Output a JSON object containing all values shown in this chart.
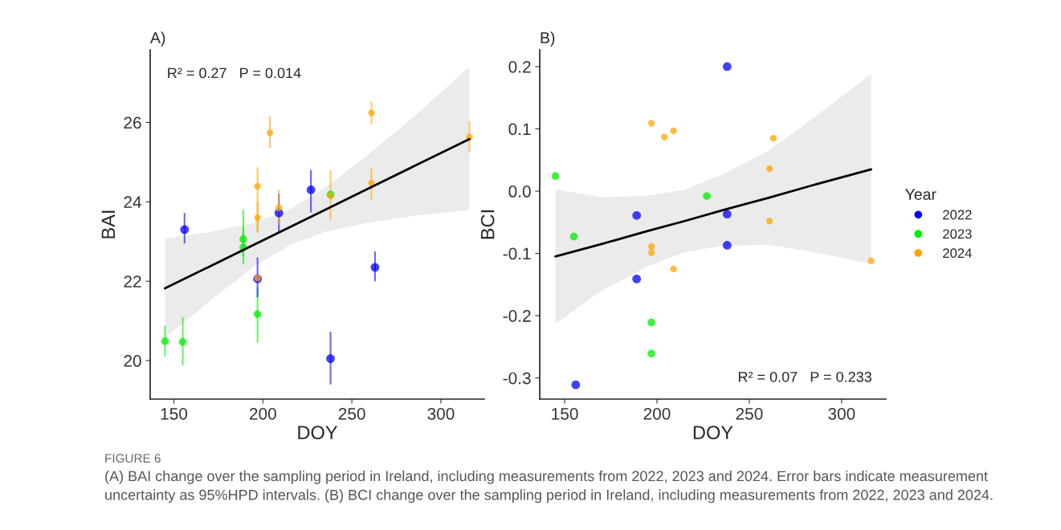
{
  "chart_data": [
    {
      "type": "scatter",
      "title": "A)",
      "xlabel": "DOY",
      "ylabel": "BAI",
      "xlim": [
        136.7,
        324.4
      ],
      "ylim": [
        19.03,
        27.83
      ],
      "xticks": [
        150,
        200,
        250,
        300
      ],
      "yticks": [
        20,
        22,
        24,
        26
      ],
      "grid": false,
      "legend": false,
      "marker": "circle",
      "annotations": [
        "R² = 0.27   P = 0.014",
        "FIGURE 6",
        "(A) BAI change over the sampling period in Ireland, including measurements from 2022, 2023 and 2024. Error bars indicate measurement uncertainty as 95%HPD intervals. (B) BCI change over the sampling period in Ireland, including measurements from 2022, 2023 and 2024."
      ],
      "series": [
        {
          "type": "line",
          "color": "#000000",
          "line_style": "solid",
          "marker": "none",
          "x": [
            145,
            170,
            195,
            215,
            235,
            260,
            285,
            316
          ],
          "values": [
            21.82,
            22.37,
            22.92,
            23.36,
            23.8,
            24.35,
            24.9,
            25.58
          ],
          "lower": [
            20.57,
            21.5,
            22.37,
            22.91,
            23.25,
            23.48,
            23.65,
            23.8
          ],
          "upper": [
            23.07,
            23.24,
            23.47,
            23.81,
            24.35,
            25.22,
            26.15,
            27.4
          ]
        },
        {
          "color": "#0000ff",
          "x": [
            156,
            197,
            209,
            227,
            238,
            263
          ],
          "values": [
            23.3,
            22.06,
            23.72,
            24.3,
            20.05,
            22.35
          ],
          "errors": [
            [
              22.95,
              23.72
            ],
            [
              21.6,
              22.6
            ],
            [
              23.25,
              24.2
            ],
            [
              23.73,
              24.8
            ],
            [
              19.4,
              20.73
            ],
            [
              22.0,
              22.75
            ]
          ]
        },
        {
          "color": "#00ee00",
          "x": [
            145,
            155,
            189,
            189,
            197,
            238
          ],
          "values": [
            20.49,
            20.47,
            23.06,
            22.85,
            21.17,
            24.18
          ],
          "errors": [
            [
              20.1,
              20.88
            ],
            [
              19.88,
              21.1
            ],
            [
              22.62,
              23.8
            ],
            [
              22.43,
              23.35
            ],
            [
              20.45,
              21.85
            ],
            null
          ]
        },
        {
          "color": "#ffa500",
          "x": [
            197,
            197,
            197,
            204,
            209,
            238,
            261,
            261,
            316
          ],
          "values": [
            24.39,
            23.6,
            22.08,
            25.74,
            23.85,
            24.15,
            26.24,
            24.47,
            25.63
          ],
          "errors": [
            [
              23.25,
              24.87
            ],
            [
              23.22,
              24.0
            ],
            null,
            [
              25.35,
              26.16
            ],
            [
              23.43,
              24.3
            ],
            [
              23.55,
              24.8
            ],
            [
              25.95,
              26.52
            ],
            [
              24.05,
              24.87
            ],
            [
              25.24,
              26.03
            ]
          ]
        }
      ]
    },
    {
      "type": "scatter",
      "title": "B)",
      "xlabel": "DOY",
      "ylabel": "BCI",
      "legend_title": "Year",
      "xlim": [
        136.5,
        324
      ],
      "ylim": [
        -0.334,
        0.227
      ],
      "xticks": [
        150,
        200,
        250,
        300
      ],
      "yticks": [
        -0.3,
        -0.2,
        -0.1,
        {
          "value": 0,
          "label": "0.0"
        },
        0.1,
        0.2
      ],
      "grid": false,
      "legend": "right",
      "marker": "circle",
      "annotations": [
        "R² = 0.07   P = 0.233"
      ],
      "series": [
        {
          "type": "line",
          "color": "#000000",
          "line_style": "solid",
          "marker": "none",
          "x": [
            145,
            170,
            195,
            215,
            235,
            260,
            285,
            316
          ],
          "values": [
            -0.105,
            -0.085,
            -0.064,
            -0.048,
            -0.031,
            -0.011,
            0.01,
            0.035
          ],
          "lower": [
            -0.213,
            -0.16,
            -0.121,
            -0.098,
            -0.088,
            -0.086,
            -0.098,
            -0.117
          ],
          "upper": [
            0.003,
            -0.01,
            -0.007,
            0.002,
            0.026,
            0.064,
            0.118,
            0.188
          ]
        },
        {
          "name": "2022",
          "color": "#0000ff",
          "x": [
            238,
            189,
            238,
            238,
            189,
            156
          ],
          "values": [
            0.2,
            -0.039,
            -0.037,
            -0.087,
            -0.141,
            -0.311
          ]
        },
        {
          "name": "2023",
          "color": "#00ee00",
          "x": [
            145,
            227,
            155,
            197,
            197
          ],
          "values": [
            0.024,
            -0.008,
            -0.073,
            -0.211,
            -0.261
          ]
        },
        {
          "name": "2024",
          "color": "#ffa500",
          "x": [
            197,
            204,
            209,
            263,
            261,
            261,
            197,
            197,
            209,
            316
          ],
          "values": [
            0.109,
            0.087,
            0.097,
            0.085,
            0.036,
            -0.048,
            -0.089,
            -0.099,
            -0.125,
            -0.112
          ]
        }
      ]
    }
  ]
}
